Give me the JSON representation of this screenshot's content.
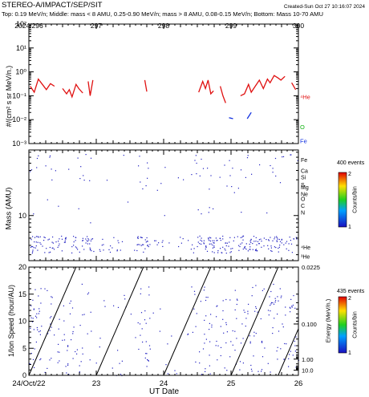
{
  "header": {
    "title": "STEREO-A/IMPACT/SEP/SIT",
    "created": "Created-Sun Oct 27 10:16:07 2024",
    "subtitle": "Top: 0.19 MeV/n; Middle: mass < 8 AMU, 0.25-0.90 MeV/n; mass > 8 AMU, 0.08-0.15 MeV/n; Bottom: Mass 10-70 AMU"
  },
  "colors": {
    "he": "#e01010",
    "o": "#10b010",
    "fe": "#1030e0",
    "dots": "#2020c0"
  },
  "chart_data": [
    {
      "type": "line",
      "panel": "top",
      "ylabel": "#/(cm² s sr MeV/n.)",
      "yscale": "log",
      "ylim": [
        0.001,
        100
      ],
      "y_ticks": [
        "10⁻³",
        "10⁻²",
        "10⁻¹",
        "10⁰",
        "10¹",
        "10²"
      ],
      "xlim": [
        296,
        300
      ],
      "top_ticks": [
        "2024/296",
        "297",
        "298",
        "299",
        "300"
      ],
      "species_labels": [
        "⁴He",
        "O",
        "Fe"
      ],
      "series": [
        {
          "name": "⁴He",
          "segments": [
            [
              [
                296.02,
                0.25
              ],
              [
                296.08,
                0.14
              ],
              [
                296.14,
                0.5
              ],
              [
                296.2,
                0.3
              ],
              [
                296.26,
                0.18
              ],
              [
                296.32,
                0.32
              ],
              [
                296.38,
                0.25
              ]
            ],
            [
              [
                296.5,
                0.2
              ],
              [
                296.56,
                0.12
              ],
              [
                296.6,
                0.18
              ],
              [
                296.64,
                0.09
              ],
              [
                296.7,
                0.3
              ],
              [
                296.74,
                0.2
              ],
              [
                296.8,
                0.13
              ]
            ],
            [
              [
                296.88,
                0.4
              ],
              [
                296.91,
                0.1
              ],
              [
                296.95,
                0.45
              ]
            ],
            [
              [
                297.72,
                0.45
              ],
              [
                297.75,
                0.15
              ]
            ],
            [
              [
                298.52,
                0.14
              ],
              [
                298.58,
                0.4
              ],
              [
                298.62,
                0.2
              ],
              [
                298.66,
                0.45
              ],
              [
                298.7,
                0.12
              ],
              [
                298.74,
                0.16
              ]
            ],
            [
              [
                298.84,
                0.25
              ],
              [
                298.88,
                0.1
              ],
              [
                298.92,
                0.05
              ]
            ],
            [
              [
                299.14,
                0.1
              ],
              [
                299.2,
                0.12
              ],
              [
                299.26,
                0.3
              ],
              [
                299.3,
                0.14
              ],
              [
                299.36,
                0.25
              ],
              [
                299.42,
                0.45
              ],
              [
                299.48,
                0.2
              ],
              [
                299.54,
                0.5
              ],
              [
                299.58,
                0.35
              ],
              [
                299.64,
                0.7
              ],
              [
                299.7,
                0.55
              ],
              [
                299.74,
                0.45
              ],
              [
                299.8,
                0.65
              ]
            ],
            [
              [
                299.9,
                0.35
              ],
              [
                299.96,
                0.18
              ]
            ]
          ]
        },
        {
          "name": "Fe",
          "segments": [
            [
              [
                298.97,
                0.012
              ],
              [
                299.03,
                0.011
              ]
            ],
            [
              [
                299.24,
                0.011
              ],
              [
                299.3,
                0.02
              ]
            ]
          ]
        }
      ]
    },
    {
      "type": "scatter",
      "panel": "middle",
      "ylabel": "Mass (AMU)",
      "yscale": "log",
      "ylim": [
        2.5,
        75
      ],
      "y_ticks": [
        "10"
      ],
      "xlim": [
        296,
        300
      ],
      "species_labels": [
        "Fe",
        "Ca",
        "Si",
        "S",
        "Mg",
        "Ne",
        "O",
        "C",
        "N",
        "⁴He",
        "³He"
      ],
      "colorbar": {
        "title": "400 events",
        "label": "Counts/bin",
        "ticks": [
          "2",
          "1"
        ]
      }
    },
    {
      "type": "scatter",
      "panel": "bottom",
      "xlabel": "UT Date",
      "ylabel": "1/Ion Speed (hour/AU)",
      "ylim": [
        0,
        20
      ],
      "y_ticks": [
        "0",
        "5",
        "10",
        "15",
        "20"
      ],
      "right_ylabel": "Energy (MeV/n.)",
      "right_ticks": [
        "0.0225",
        "0.100",
        "1.00",
        "10.0"
      ],
      "x_ticks": [
        "24/Oct/22",
        "23",
        "24",
        "25",
        "26"
      ],
      "xlim": [
        296,
        300
      ],
      "colorbar": {
        "title": "435 events",
        "label": "Counts/bin",
        "ticks": [
          "2",
          "1"
        ]
      }
    }
  ]
}
